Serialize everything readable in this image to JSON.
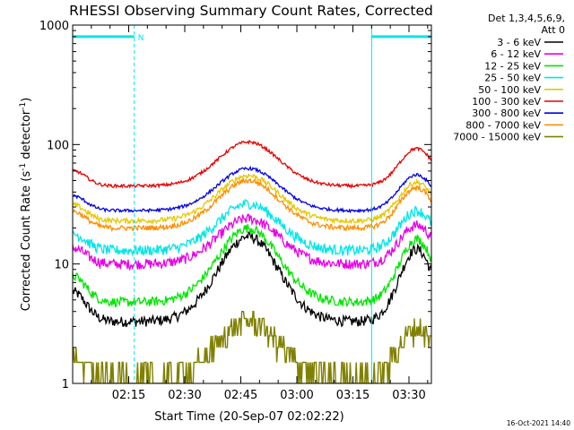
{
  "chart_data": {
    "type": "line",
    "title": "RHESSI Observing Summary Count Rates, Corrected",
    "xlabel": "Start Time (20-Sep-07 02:02:22)",
    "ylabel_main": "Corrected Count Rate (s",
    "ylabel_sup1": "-1",
    "ylabel_mid": " detector",
    "ylabel_sup2": "-1",
    "ylabel_end": ")",
    "yscale": "log",
    "ylim": [
      1,
      1000
    ],
    "y_ticks": [
      {
        "value": 1,
        "label": "1"
      },
      {
        "value": 10,
        "label": "10"
      },
      {
        "value": 100,
        "label": "100"
      },
      {
        "value": 1000,
        "label": "1000"
      }
    ],
    "xlim_minutes": [
      0,
      96
    ],
    "x_ticks": [
      {
        "minute": 15,
        "label": "02:15"
      },
      {
        "minute": 30,
        "label": "02:30"
      },
      {
        "minute": 45,
        "label": "02:45"
      },
      {
        "minute": 60,
        "label": "03:00"
      },
      {
        "minute": 75,
        "label": "03:15"
      },
      {
        "minute": 90,
        "label": "03:30"
      }
    ],
    "legend": {
      "header1": "Det 1,3,4,5,6,9,",
      "header2": "Att 0",
      "position": "top-right outside"
    },
    "night_marker": "N",
    "events": [
      {
        "type": "night",
        "start_minute": 0,
        "end_minute": 16.5,
        "level": 800
      },
      {
        "type": "night",
        "start_minute": 80,
        "end_minute": 96,
        "level": 800
      }
    ],
    "series": [
      {
        "name": "3 - 6 keV",
        "color": "#000000",
        "base": 3.3,
        "peak": 17,
        "noise": 0.1
      },
      {
        "name": "6 - 12 keV",
        "color": "#e600e6",
        "base": 10,
        "peak": 24,
        "noise": 0.1
      },
      {
        "name": "12 - 25 keV",
        "color": "#00e600",
        "base": 4.8,
        "peak": 20,
        "noise": 0.09
      },
      {
        "name": "25 - 50 keV",
        "color": "#00e6e6",
        "base": 13,
        "peak": 32,
        "noise": 0.1
      },
      {
        "name": "50 - 100 keV",
        "color": "#e6c800",
        "base": 23,
        "peak": 55,
        "noise": 0.05
      },
      {
        "name": "100 - 300 keV",
        "color": "#e60000",
        "base": 45,
        "peak": 105,
        "noise": 0.03
      },
      {
        "name": "300 - 800 keV",
        "color": "#0000e6",
        "base": 28,
        "peak": 63,
        "noise": 0.03
      },
      {
        "name": "800 - 7000 keV",
        "color": "#ff8c00",
        "base": 20,
        "peak": 50,
        "noise": 0.05
      },
      {
        "name": "7000 - 15000 keV",
        "color": "#808000",
        "base": 1.1,
        "peak": 3.4,
        "noise": 0.25
      }
    ]
  },
  "footer": {
    "timestamp": "16-Oct-2021 14:40"
  }
}
